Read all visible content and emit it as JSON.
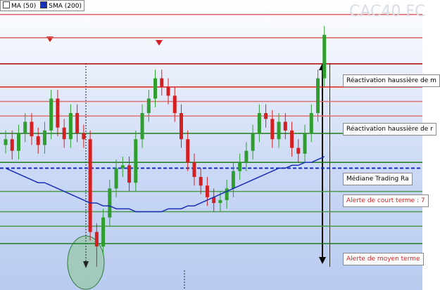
{
  "chart_data": {
    "type": "candlestick",
    "title": "CAC40 FC",
    "ylim": [
      0,
      100
    ],
    "up_color": "#2f9e2f",
    "down_color": "#d42020",
    "open": [
      50,
      52,
      48,
      54,
      58,
      53,
      50,
      55,
      66,
      56,
      52,
      61,
      54,
      52,
      20,
      15,
      25,
      35,
      42,
      43,
      37,
      52,
      61,
      66,
      73,
      70,
      67,
      61,
      52,
      44,
      39,
      36,
      32,
      30,
      31,
      35,
      41,
      44,
      48,
      54,
      61,
      59,
      52,
      58,
      55,
      49,
      47,
      54,
      61,
      73
    ],
    "high": [
      55,
      55,
      57,
      61,
      61,
      56,
      58,
      69,
      69,
      59,
      64,
      64,
      57,
      55,
      23,
      28,
      38,
      45,
      46,
      46,
      55,
      64,
      69,
      76,
      76,
      73,
      70,
      64,
      55,
      47,
      42,
      39,
      35,
      34,
      38,
      44,
      47,
      51,
      57,
      64,
      64,
      62,
      61,
      61,
      58,
      52,
      57,
      64,
      76,
      91
    ],
    "low": [
      47,
      45,
      45,
      51,
      50,
      47,
      47,
      52,
      53,
      49,
      49,
      51,
      49,
      17,
      8,
      12,
      22,
      32,
      39,
      34,
      34,
      49,
      58,
      63,
      67,
      64,
      58,
      49,
      41,
      36,
      33,
      29,
      27,
      27,
      28,
      32,
      38,
      41,
      45,
      51,
      56,
      49,
      49,
      52,
      46,
      44,
      44,
      51,
      58,
      70
    ],
    "close": [
      52,
      48,
      54,
      58,
      53,
      50,
      55,
      66,
      56,
      52,
      61,
      54,
      52,
      20,
      15,
      25,
      35,
      42,
      43,
      37,
      52,
      61,
      66,
      73,
      70,
      67,
      61,
      52,
      44,
      39,
      36,
      32,
      30,
      31,
      35,
      41,
      44,
      48,
      54,
      61,
      59,
      52,
      58,
      55,
      49,
      47,
      54,
      61,
      73,
      88
    ],
    "series": [
      {
        "name": "MA (50)",
        "color": "#ffffff"
      },
      {
        "name": "SMA (200)",
        "color": "#1a2fb8",
        "values": [
          42,
          41,
          40,
          39,
          38,
          37,
          37,
          36,
          35,
          34,
          33,
          32,
          31,
          30,
          30,
          29,
          29,
          28,
          28,
          28,
          27,
          27,
          27,
          27,
          27,
          28,
          28,
          28,
          29,
          29,
          30,
          31,
          32,
          33,
          34,
          35,
          36,
          37,
          38,
          39,
          40,
          41,
          42,
          42,
          43,
          43,
          44,
          44,
          45,
          46
        ]
      }
    ],
    "levels": [
      {
        "value": 95,
        "color": "#e06060"
      },
      {
        "value": 87,
        "color": "#e06060"
      },
      {
        "value": 78,
        "color": "#b00000"
      },
      {
        "value": 70,
        "color": "#e02020"
      },
      {
        "value": 65,
        "color": "#e07070"
      },
      {
        "value": 60,
        "color": "#e07070"
      },
      {
        "value": 54,
        "color": "#1f7a1f"
      },
      {
        "value": 44,
        "color": "#1f7a1f"
      },
      {
        "value": 42,
        "color": "#1a2fb8",
        "dashed": true
      },
      {
        "value": 34,
        "color": "#4a9a4a"
      },
      {
        "value": 27,
        "color": "#4a9a4a"
      },
      {
        "value": 22,
        "color": "#4a9a4a"
      },
      {
        "value": 16,
        "color": "#1f7a1f"
      }
    ],
    "annotations": [
      "Réactivation haussière de m",
      "Réactivation haussière de r",
      "Médiane Trading Ra",
      "Alerte de court terme : 7",
      "Alerte de moyen terme"
    ]
  }
}
